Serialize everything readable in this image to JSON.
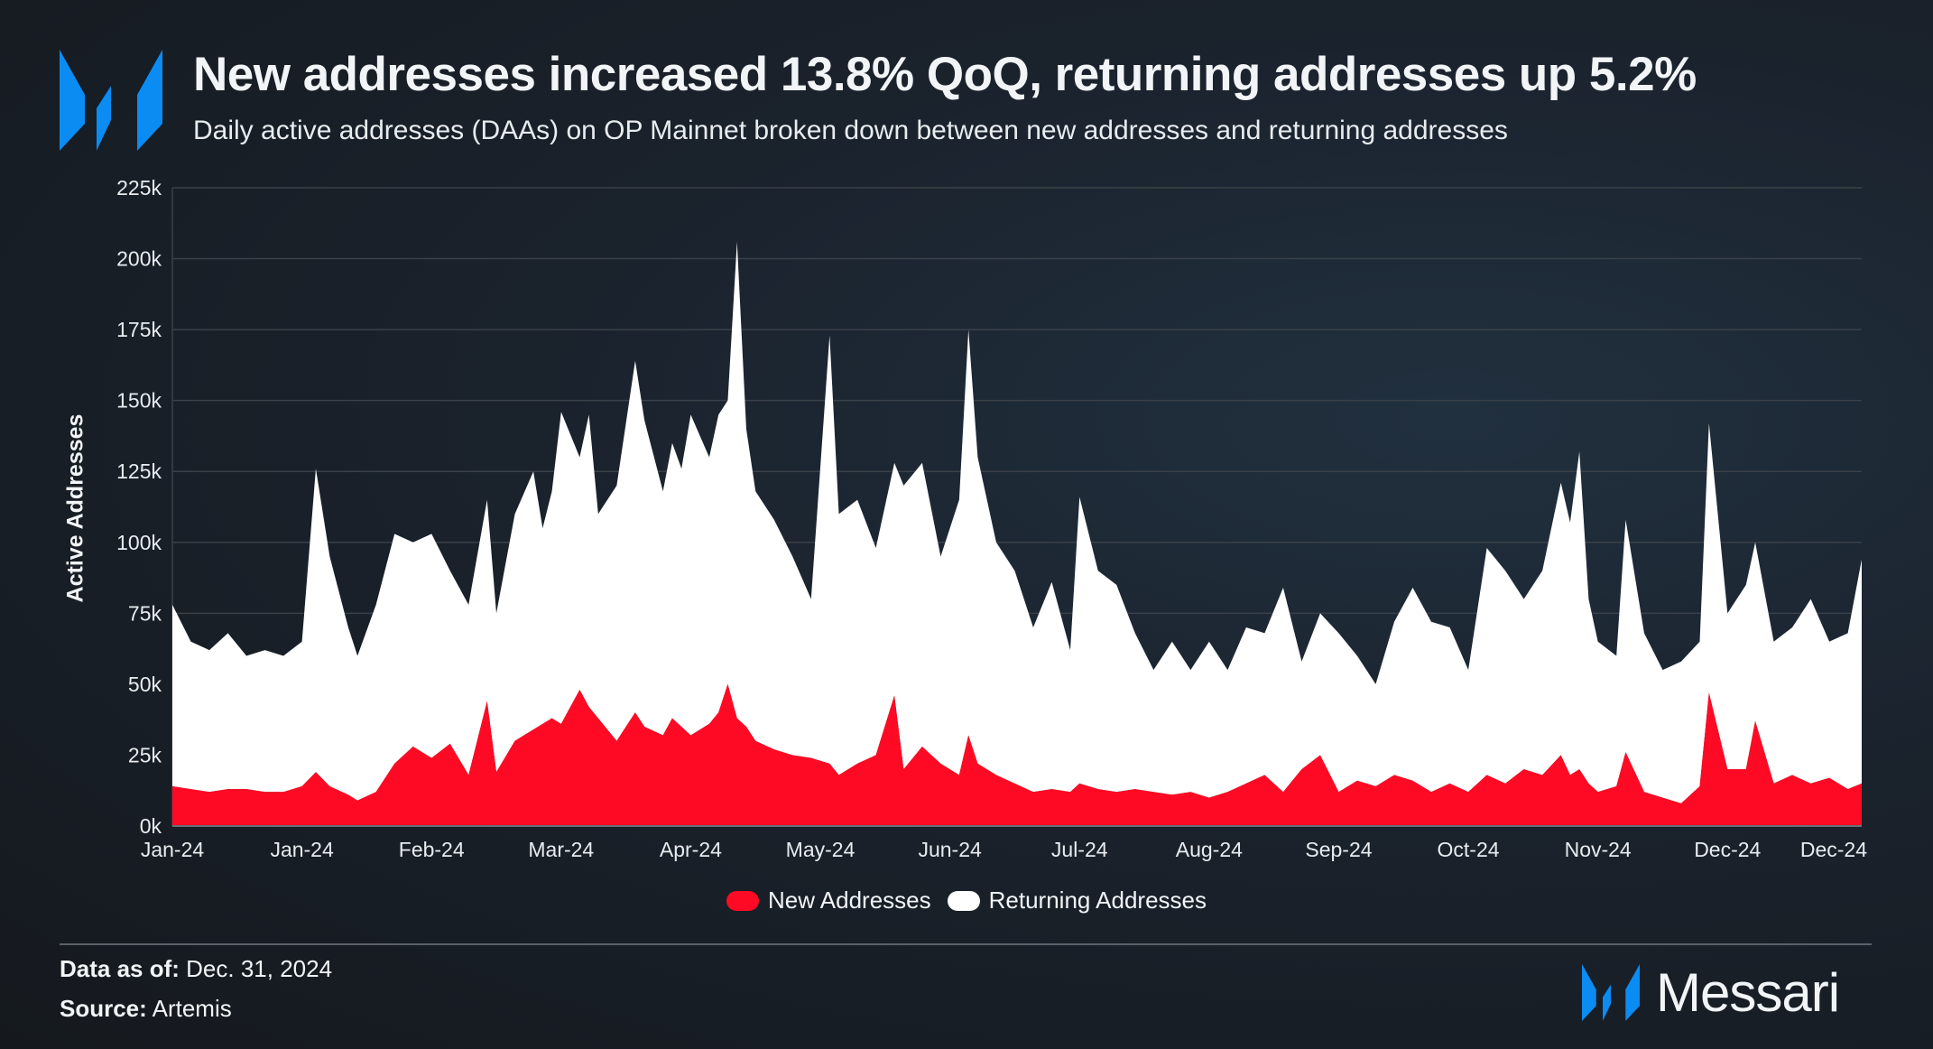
{
  "header": {
    "title": "New addresses increased 13.8% QoQ, returning addresses up 5.2%",
    "subtitle": "Daily active addresses (DAAs) on OP Mainnet broken down between new addresses and returning addresses",
    "logo_icon": "messari-m-logo"
  },
  "footer": {
    "data_as_of_label": "Data as of:",
    "data_as_of_value": "Dec. 31, 2024",
    "source_label": "Source:",
    "source_value": "Artemis",
    "brand": "Messari"
  },
  "colors": {
    "new": "#ff0a24",
    "returning": "#ffffff",
    "brand_blue": "#0b8cf2",
    "grid": "#3a4048"
  },
  "chart_data": {
    "type": "area",
    "stacked": true,
    "title": "New addresses increased 13.8% QoQ, returning addresses up 5.2%",
    "xlabel": "",
    "ylabel": "Active Addresses",
    "ylim": [
      0,
      225000
    ],
    "yticks": [
      0,
      25000,
      50000,
      75000,
      100000,
      125000,
      150000,
      175000,
      200000,
      225000
    ],
    "ytick_labels": [
      "0k",
      "25k",
      "50k",
      "75k",
      "100k",
      "125k",
      "150k",
      "175k",
      "200k",
      "225k"
    ],
    "xlim": [
      "2024-01-01",
      "2024-12-31"
    ],
    "xticks": [
      "2024-01-01",
      "2024-01-29",
      "2024-02-26",
      "2024-03-25",
      "2024-04-22",
      "2024-05-20",
      "2024-06-17",
      "2024-07-15",
      "2024-08-12",
      "2024-09-09",
      "2024-10-07",
      "2024-11-04",
      "2024-12-02",
      "2024-12-31"
    ],
    "xtick_labels": [
      "Jan-24",
      "Jan-24",
      "Feb-24",
      "Mar-24",
      "Apr-24",
      "May-24",
      "Jun-24",
      "Jul-24",
      "Aug-24",
      "Sep-24",
      "Oct-24",
      "Nov-24",
      "Dec-24",
      "Dec-24"
    ],
    "grid": true,
    "legend_position": "bottom",
    "x": [
      "2024-01-01",
      "2024-01-05",
      "2024-01-09",
      "2024-01-13",
      "2024-01-17",
      "2024-01-21",
      "2024-01-25",
      "2024-01-29",
      "2024-02-01",
      "2024-02-04",
      "2024-02-08",
      "2024-02-10",
      "2024-02-14",
      "2024-02-18",
      "2024-02-22",
      "2024-02-26",
      "2024-03-01",
      "2024-03-05",
      "2024-03-09",
      "2024-03-11",
      "2024-03-15",
      "2024-03-19",
      "2024-03-21",
      "2024-03-23",
      "2024-03-25",
      "2024-03-29",
      "2024-03-31",
      "2024-04-02",
      "2024-04-06",
      "2024-04-10",
      "2024-04-12",
      "2024-04-16",
      "2024-04-18",
      "2024-04-20",
      "2024-04-22",
      "2024-04-26",
      "2024-04-28",
      "2024-04-30",
      "2024-05-02",
      "2024-05-04",
      "2024-05-06",
      "2024-05-10",
      "2024-05-14",
      "2024-05-18",
      "2024-05-22",
      "2024-05-24",
      "2024-05-28",
      "2024-06-01",
      "2024-06-05",
      "2024-06-07",
      "2024-06-11",
      "2024-06-15",
      "2024-06-19",
      "2024-06-21",
      "2024-06-23",
      "2024-06-27",
      "2024-07-01",
      "2024-07-05",
      "2024-07-09",
      "2024-07-13",
      "2024-07-15",
      "2024-07-19",
      "2024-07-23",
      "2024-07-27",
      "2024-07-31",
      "2024-08-04",
      "2024-08-08",
      "2024-08-12",
      "2024-08-16",
      "2024-08-20",
      "2024-08-24",
      "2024-08-28",
      "2024-09-01",
      "2024-09-05",
      "2024-09-09",
      "2024-09-13",
      "2024-09-17",
      "2024-09-21",
      "2024-09-25",
      "2024-09-29",
      "2024-10-03",
      "2024-10-07",
      "2024-10-11",
      "2024-10-15",
      "2024-10-19",
      "2024-10-23",
      "2024-10-27",
      "2024-10-29",
      "2024-10-31",
      "2024-11-02",
      "2024-11-04",
      "2024-11-08",
      "2024-11-10",
      "2024-11-14",
      "2024-11-18",
      "2024-11-22",
      "2024-11-26",
      "2024-11-28",
      "2024-12-02",
      "2024-12-06",
      "2024-12-08",
      "2024-12-12",
      "2024-12-16",
      "2024-12-20",
      "2024-12-24",
      "2024-12-28",
      "2024-12-31"
    ],
    "series": [
      {
        "name": "New Addresses",
        "color": "#ff0a24",
        "values": [
          14000,
          13000,
          12000,
          13000,
          13000,
          12000,
          12000,
          14000,
          19000,
          14000,
          11000,
          9000,
          12000,
          22000,
          28000,
          24000,
          29000,
          18000,
          44000,
          19000,
          30000,
          34000,
          36000,
          38000,
          36000,
          48000,
          42000,
          38000,
          30000,
          40000,
          35000,
          32000,
          38000,
          35000,
          32000,
          36000,
          40000,
          50000,
          38000,
          35000,
          30000,
          27000,
          25000,
          24000,
          22000,
          18000,
          22000,
          25000,
          46000,
          20000,
          28000,
          22000,
          18000,
          32000,
          22000,
          18000,
          15000,
          12000,
          13000,
          12000,
          15000,
          13000,
          12000,
          13000,
          12000,
          11000,
          12000,
          10000,
          12000,
          15000,
          18000,
          12000,
          20000,
          25000,
          12000,
          16000,
          14000,
          18000,
          16000,
          12000,
          15000,
          12000,
          18000,
          15000,
          20000,
          18000,
          25000,
          18000,
          20000,
          15000,
          12000,
          14000,
          26000,
          12000,
          10000,
          8000,
          14000,
          47000,
          20000,
          20000,
          37000,
          15000,
          18000,
          15000,
          17000,
          13000,
          15000
        ]
      },
      {
        "name": "Returning Addresses",
        "color": "#ffffff",
        "values": [
          64000,
          52000,
          50000,
          55000,
          47000,
          50000,
          48000,
          51000,
          107000,
          81000,
          59000,
          51000,
          66000,
          81000,
          72000,
          79000,
          61000,
          60000,
          71000,
          56000,
          80000,
          91000,
          69000,
          80000,
          110000,
          82000,
          103000,
          72000,
          90000,
          124000,
          108000,
          86000,
          97000,
          91000,
          113000,
          94000,
          105000,
          100000,
          168000,
          105000,
          88000,
          81000,
          70000,
          56000,
          151000,
          92000,
          93000,
          73000,
          82000,
          100000,
          100000,
          73000,
          97000,
          143000,
          108000,
          82000,
          75000,
          58000,
          73000,
          50000,
          101000,
          77000,
          73000,
          55000,
          43000,
          54000,
          43000,
          55000,
          43000,
          55000,
          50000,
          72000,
          38000,
          50000,
          56000,
          44000,
          36000,
          54000,
          68000,
          60000,
          55000,
          43000,
          80000,
          75000,
          60000,
          72000,
          96000,
          89000,
          112000,
          65000,
          53000,
          46000,
          82000,
          56000,
          45000,
          50000,
          51000,
          95000,
          55000,
          65000,
          63000,
          50000,
          52000,
          65000,
          48000,
          55000,
          79000
        ]
      }
    ]
  }
}
